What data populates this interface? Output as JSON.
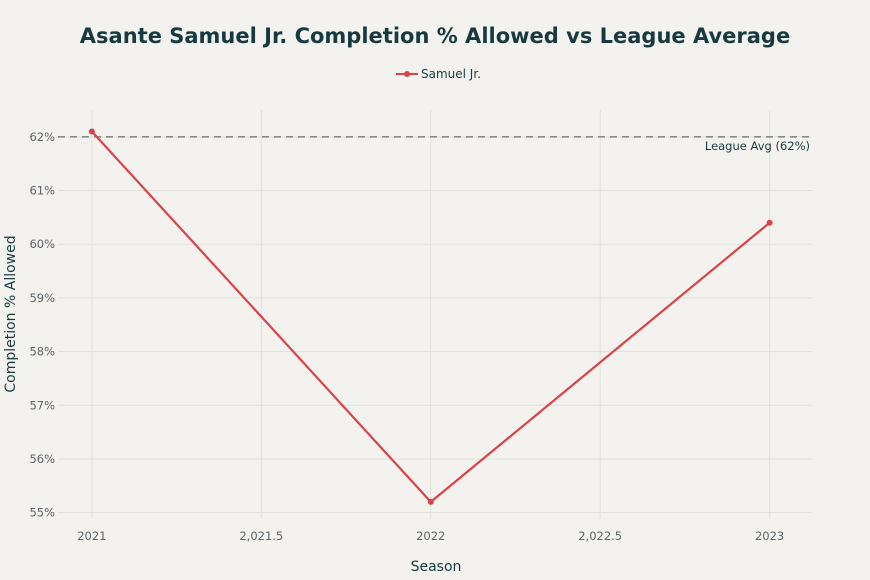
{
  "chart_data": {
    "type": "line",
    "title": "Asante Samuel Jr. Completion % Allowed vs League Average",
    "xlabel": "Season",
    "ylabel": "Completion % Allowed",
    "xlim": [
      2020.9,
      2023.125
    ],
    "ylim": [
      54.9,
      62.5
    ],
    "x_ticks": [
      2021,
      2021.5,
      2022,
      2022.5,
      2023
    ],
    "x_tick_labels": [
      "2021",
      "2,021.5",
      "2022",
      "2,022.5",
      "2023"
    ],
    "y_ticks": [
      55,
      56,
      57,
      58,
      59,
      60,
      61,
      62
    ],
    "y_tick_labels": [
      "55%",
      "56%",
      "57%",
      "58%",
      "59%",
      "60%",
      "61%",
      "62%"
    ],
    "grid": true,
    "legend_position": "top-center",
    "series": [
      {
        "name": "Samuel Jr.",
        "color": "#d9434a",
        "x": [
          2021,
          2022,
          2023
        ],
        "values": [
          62.1,
          55.2,
          60.4
        ]
      }
    ],
    "reference_line": {
      "value": 62,
      "label": "League Avg (62%)",
      "color": "#888888",
      "style": "dashed"
    }
  }
}
